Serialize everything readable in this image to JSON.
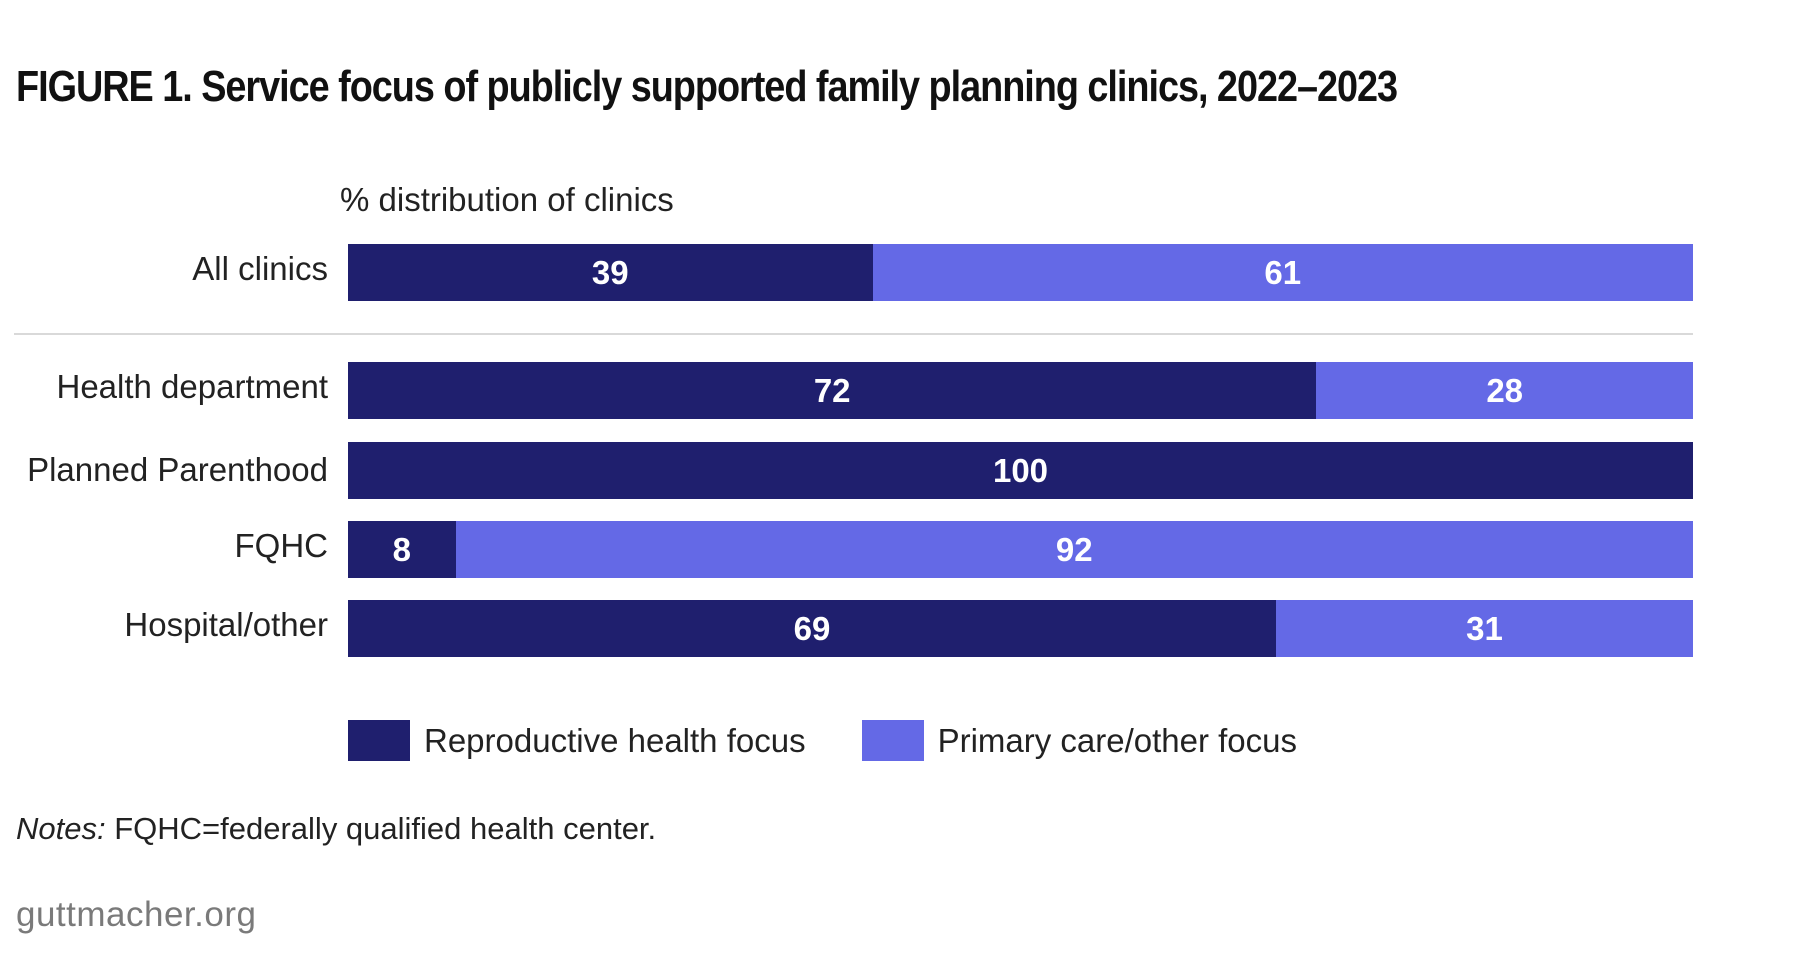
{
  "title": "FIGURE 1. Service focus of publicly supported family planning clinics, 2022–2023",
  "subtitle": "% distribution of clinics",
  "colors": {
    "reproductive": "#1f1f6e",
    "primary": "#6469e6"
  },
  "chart_data": {
    "type": "bar",
    "orientation": "horizontal",
    "stacked": true,
    "title": "FIGURE 1. Service focus of publicly supported family planning clinics, 2022–2023",
    "ylabel": "",
    "xlabel": "% distribution of clinics",
    "xlim": [
      0,
      100
    ],
    "grid": false,
    "legend_position": "bottom",
    "categories": [
      "All clinics",
      "Health department",
      "Planned Parenthood",
      "FQHC",
      "Hospital/other"
    ],
    "series": [
      {
        "name": "Reproductive health focus",
        "values": [
          39,
          72,
          100,
          8,
          69
        ],
        "color": "#1f1f6e"
      },
      {
        "name": "Primary care/other focus",
        "values": [
          61,
          28,
          0,
          92,
          31
        ],
        "color": "#6469e6"
      }
    ]
  },
  "notes": {
    "prefix": "Notes:",
    "text": " FQHC=federally qualified health center."
  },
  "source": "guttmacher.org"
}
